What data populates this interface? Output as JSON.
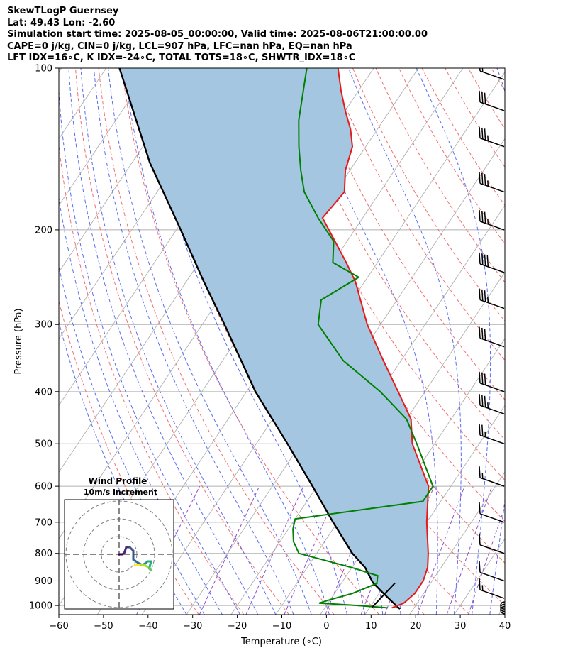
{
  "header": {
    "lines": [
      "SkewTLogP Guernsey",
      "Lat: 49.43   Lon: -2.60",
      "Simulation start time: 2025-08-05_00:00:00, Valid time: 2025-08-06T21:00:00.00",
      "CAPE=0 j/kg, CIN=0 j/kg, LCL=907 hPa, LFC=nan hPa, EQ=nan hPa",
      "LFT IDX=16∘C, K IDX=-24∘C, TOTAL TOTS=18∘C, SHWTR_IDX=18∘C"
    ]
  },
  "chart_data": {
    "type": "skewt",
    "xlabel": "Temperature (∘C)",
    "ylabel": "Pressure (hPa)",
    "xlim": [
      -60,
      40
    ],
    "ylim": [
      1040,
      100
    ],
    "xticks": [
      -60,
      -50,
      -40,
      -30,
      -20,
      -10,
      0,
      10,
      20,
      30,
      40
    ],
    "xtick_labels": [
      "−60",
      "−50",
      "−40",
      "−30",
      "−20",
      "−10",
      "0",
      "10",
      "20",
      "30",
      "40"
    ],
    "yticks": [
      1000,
      900,
      800,
      700,
      600,
      500,
      400,
      300,
      200,
      100
    ],
    "ytick_labels": [
      "1000",
      "900",
      "800",
      "700",
      "600",
      "500",
      "400",
      "300",
      "200",
      "100"
    ],
    "grid": true,
    "colors": {
      "temperature": "#e41a1c",
      "dewpoint": "#008000",
      "parcel": "#000000",
      "cape_fill": "#a4c6e0",
      "dry_adiabat": "#f07070",
      "moist_adiabat": "#5a6ef0",
      "mixing_ratio": "#9050c8",
      "isotherm": "#b0b0b0"
    },
    "temperature": [
      {
        "p": 1010,
        "t": 15
      },
      {
        "p": 990,
        "t": 17
      },
      {
        "p": 950,
        "t": 18
      },
      {
        "p": 900,
        "t": 18
      },
      {
        "p": 850,
        "t": 17
      },
      {
        "p": 800,
        "t": 15
      },
      {
        "p": 700,
        "t": 10
      },
      {
        "p": 600,
        "t": 5
      },
      {
        "p": 500,
        "t": -5
      },
      {
        "p": 450,
        "t": -9
      },
      {
        "p": 400,
        "t": -16
      },
      {
        "p": 350,
        "t": -24
      },
      {
        "p": 300,
        "t": -33
      },
      {
        "p": 250,
        "t": -42
      },
      {
        "p": 230,
        "t": -47
      },
      {
        "p": 190,
        "t": -59
      },
      {
        "p": 170,
        "t": -58
      },
      {
        "p": 155,
        "t": -61
      },
      {
        "p": 140,
        "t": -63
      },
      {
        "p": 130,
        "t": -66
      },
      {
        "p": 120,
        "t": -70
      },
      {
        "p": 110,
        "t": -74
      },
      {
        "p": 100,
        "t": -78
      }
    ],
    "dewpoint": [
      {
        "p": 1010,
        "t": 14
      },
      {
        "p": 1000,
        "t": 7
      },
      {
        "p": 990,
        "t": -2
      },
      {
        "p": 975,
        "t": 0
      },
      {
        "p": 950,
        "t": 4
      },
      {
        "p": 930,
        "t": 6
      },
      {
        "p": 910,
        "t": 8
      },
      {
        "p": 880,
        "t": 7
      },
      {
        "p": 850,
        "t": 0
      },
      {
        "p": 800,
        "t": -14
      },
      {
        "p": 760,
        "t": -17
      },
      {
        "p": 720,
        "t": -19
      },
      {
        "p": 690,
        "t": -20
      },
      {
        "p": 640,
        "t": 6
      },
      {
        "p": 600,
        "t": 6
      },
      {
        "p": 500,
        "t": -4
      },
      {
        "p": 450,
        "t": -10
      },
      {
        "p": 400,
        "t": -20
      },
      {
        "p": 350,
        "t": -33
      },
      {
        "p": 300,
        "t": -44
      },
      {
        "p": 270,
        "t": -47
      },
      {
        "p": 245,
        "t": -42
      },
      {
        "p": 230,
        "t": -50
      },
      {
        "p": 210,
        "t": -53
      },
      {
        "p": 190,
        "t": -60
      },
      {
        "p": 170,
        "t": -67
      },
      {
        "p": 155,
        "t": -71
      },
      {
        "p": 140,
        "t": -75
      },
      {
        "p": 125,
        "t": -79
      },
      {
        "p": 100,
        "t": -85
      }
    ],
    "parcel": [
      {
        "p": 1015,
        "t": 17
      },
      {
        "p": 1000,
        "t": 15.6
      },
      {
        "p": 950,
        "t": 11
      },
      {
        "p": 907,
        "t": 7
      },
      {
        "p": 850,
        "t": 3
      },
      {
        "p": 800,
        "t": -2
      },
      {
        "p": 700,
        "t": -11
      },
      {
        "p": 600,
        "t": -21
      },
      {
        "p": 500,
        "t": -33
      },
      {
        "p": 400,
        "t": -48
      },
      {
        "p": 300,
        "t": -65
      },
      {
        "p": 250,
        "t": -76
      },
      {
        "p": 200,
        "t": -89
      },
      {
        "p": 150,
        "t": -106
      },
      {
        "p": 100,
        "t": -127
      }
    ],
    "wind_barbs": [
      {
        "p": 1020,
        "speed": "calm"
      },
      {
        "p": 1010,
        "speed": "calm"
      },
      {
        "p": 1000,
        "speed": "calm"
      },
      {
        "p": 970,
        "dir": 300,
        "speed": 15
      },
      {
        "p": 900,
        "dir": 300,
        "speed": 10
      },
      {
        "p": 800,
        "dir": 300,
        "speed": 10
      },
      {
        "p": 700,
        "dir": 290,
        "speed": 10
      },
      {
        "p": 600,
        "dir": 280,
        "speed": 15
      },
      {
        "p": 500,
        "dir": 280,
        "speed": 25
      },
      {
        "p": 440,
        "dir": 280,
        "speed": 35
      },
      {
        "p": 400,
        "dir": 280,
        "speed": 30
      },
      {
        "p": 330,
        "dir": 280,
        "speed": 30
      },
      {
        "p": 280,
        "dir": 280,
        "speed": 35
      },
      {
        "p": 240,
        "dir": 280,
        "speed": 40
      },
      {
        "p": 200,
        "dir": 280,
        "speed": 35
      },
      {
        "p": 170,
        "dir": 280,
        "speed": 35
      },
      {
        "p": 140,
        "dir": 280,
        "speed": 35
      },
      {
        "p": 120,
        "dir": 280,
        "speed": 30
      },
      {
        "p": 105,
        "dir": 280,
        "speed": 20
      }
    ],
    "hodograph": {
      "title": "Wind Profile",
      "subtitle": "10m/s increment",
      "ring_step_ms": 10,
      "ring_count": 3,
      "points": [
        {
          "u": 0,
          "v": 0
        },
        {
          "u": 2,
          "v": 0
        },
        {
          "u": 3,
          "v": 1
        },
        {
          "u": 4,
          "v": 4
        },
        {
          "u": 6,
          "v": 4
        },
        {
          "u": 8,
          "v": 2
        },
        {
          "u": 8,
          "v": -3
        },
        {
          "u": 11,
          "v": -5
        },
        {
          "u": 13,
          "v": -6
        },
        {
          "u": 15,
          "v": -5
        },
        {
          "u": 16,
          "v": -4
        },
        {
          "u": 18,
          "v": -4
        },
        {
          "u": 17,
          "v": -8
        },
        {
          "u": 18,
          "v": -9
        },
        {
          "u": 16,
          "v": -7
        },
        {
          "u": 14,
          "v": -6
        },
        {
          "u": 11,
          "v": -6
        },
        {
          "u": 9,
          "v": -6
        }
      ]
    }
  }
}
